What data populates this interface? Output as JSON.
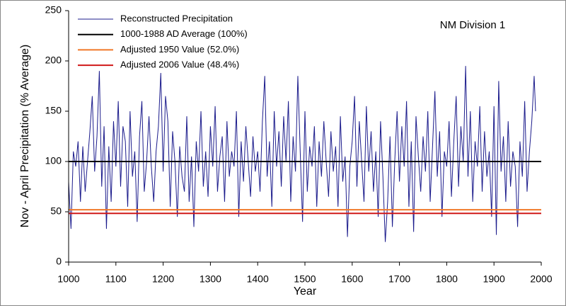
{
  "chart_data": {
    "type": "line",
    "x_label": "Year",
    "y_label": "Nov - April Precipitation (% Average)",
    "annotation": "NM Division 1",
    "xlim": [
      1000,
      2000
    ],
    "xticks": [
      1000,
      1100,
      1200,
      1300,
      1400,
      1500,
      1600,
      1700,
      1800,
      1900,
      2000
    ],
    "ylim": [
      0,
      250
    ],
    "yticks": [
      0,
      50,
      100,
      150,
      200,
      250
    ],
    "grid": false,
    "legend": "upper left",
    "x": [
      1000,
      1005,
      1010,
      1015,
      1020,
      1025,
      1030,
      1035,
      1040,
      1045,
      1050,
      1055,
      1060,
      1065,
      1070,
      1075,
      1080,
      1085,
      1090,
      1095,
      1100,
      1105,
      1110,
      1115,
      1120,
      1125,
      1130,
      1135,
      1140,
      1145,
      1150,
      1155,
      1160,
      1165,
      1170,
      1175,
      1180,
      1185,
      1190,
      1195,
      1200,
      1205,
      1210,
      1215,
      1220,
      1225,
      1230,
      1235,
      1240,
      1245,
      1250,
      1255,
      1260,
      1265,
      1270,
      1275,
      1280,
      1285,
      1290,
      1295,
      1300,
      1305,
      1310,
      1315,
      1320,
      1325,
      1330,
      1335,
      1340,
      1345,
      1350,
      1355,
      1360,
      1365,
      1370,
      1375,
      1380,
      1385,
      1390,
      1395,
      1400,
      1405,
      1410,
      1415,
      1420,
      1425,
      1430,
      1435,
      1440,
      1445,
      1450,
      1455,
      1460,
      1465,
      1470,
      1475,
      1480,
      1485,
      1490,
      1495,
      1500,
      1505,
      1510,
      1515,
      1520,
      1525,
      1530,
      1535,
      1540,
      1545,
      1550,
      1555,
      1560,
      1565,
      1570,
      1575,
      1580,
      1585,
      1590,
      1595,
      1600,
      1605,
      1610,
      1615,
      1620,
      1625,
      1630,
      1635,
      1640,
      1645,
      1650,
      1655,
      1660,
      1665,
      1670,
      1675,
      1680,
      1685,
      1690,
      1695,
      1700,
      1705,
      1710,
      1715,
      1720,
      1725,
      1730,
      1735,
      1740,
      1745,
      1750,
      1755,
      1760,
      1765,
      1770,
      1775,
      1780,
      1785,
      1790,
      1795,
      1800,
      1805,
      1810,
      1815,
      1820,
      1825,
      1830,
      1835,
      1840,
      1845,
      1850,
      1855,
      1860,
      1865,
      1870,
      1875,
      1880,
      1885,
      1890,
      1895,
      1900,
      1905,
      1910,
      1915,
      1920,
      1925,
      1930,
      1935,
      1940,
      1945,
      1950,
      1955,
      1960,
      1965,
      1970,
      1975,
      1980,
      1985,
      1988
    ],
    "series": [
      {
        "name": "Reconstructed Precipitation",
        "color": "#1c1c8c",
        "values": [
          80,
          33,
          110,
          95,
          120,
          60,
          115,
          70,
          100,
          130,
          165,
          90,
          125,
          190,
          75,
          135,
          33,
          115,
          60,
          140,
          95,
          160,
          75,
          135,
          120,
          55,
          150,
          85,
          110,
          40,
          125,
          160,
          70,
          100,
          145,
          95,
          60,
          110,
          135,
          188,
          90,
          165,
          140,
          55,
          130,
          100,
          45,
          115,
          85,
          70,
          145,
          60,
          105,
          35,
          120,
          90,
          150,
          75,
          110,
          65,
          135,
          95,
          155,
          70,
          105,
          125,
          60,
          140,
          85,
          110,
          95,
          150,
          45,
          120,
          80,
          135,
          100,
          65,
          125,
          90,
          110,
          70,
          140,
          185,
          85,
          120,
          55,
          150,
          95,
          130,
          75,
          145,
          100,
          160,
          60,
          125,
          90,
          185,
          110,
          40,
          150,
          70,
          115,
          95,
          135,
          55,
          120,
          85,
          140,
          100,
          65,
          130,
          90,
          115,
          55,
          145,
          80,
          105,
          25,
          95,
          120,
          165,
          75,
          140,
          100,
          60,
          155,
          90,
          130,
          70,
          110,
          45,
          140,
          85,
          20,
          60,
          125,
          35,
          100,
          150,
          80,
          135,
          95,
          160,
          55,
          120,
          30,
          145,
          105,
          70,
          125,
          90,
          150,
          60,
          115,
          170,
          85,
          130,
          45,
          110,
          95,
          140,
          65,
          120,
          165,
          75,
          135,
          100,
          195,
          85,
          150,
          60,
          120,
          95,
          155,
          70,
          130,
          85,
          110,
          45,
          155,
          27,
          180,
          90,
          125,
          60,
          140,
          75,
          110,
          95,
          35,
          120,
          85,
          160,
          70,
          110,
          140,
          185,
          150
        ]
      }
    ],
    "hlines": [
      {
        "name": "1000-1988 AD Average (100%)",
        "color": "#000000",
        "value": 100
      },
      {
        "name": "Adjusted 1950 Value  (52.0%)",
        "color": "#f07828",
        "value": 52.0
      },
      {
        "name": "Adjusted 2006 Value  (48.4%)",
        "color": "#d01818",
        "value": 48.4
      }
    ]
  }
}
